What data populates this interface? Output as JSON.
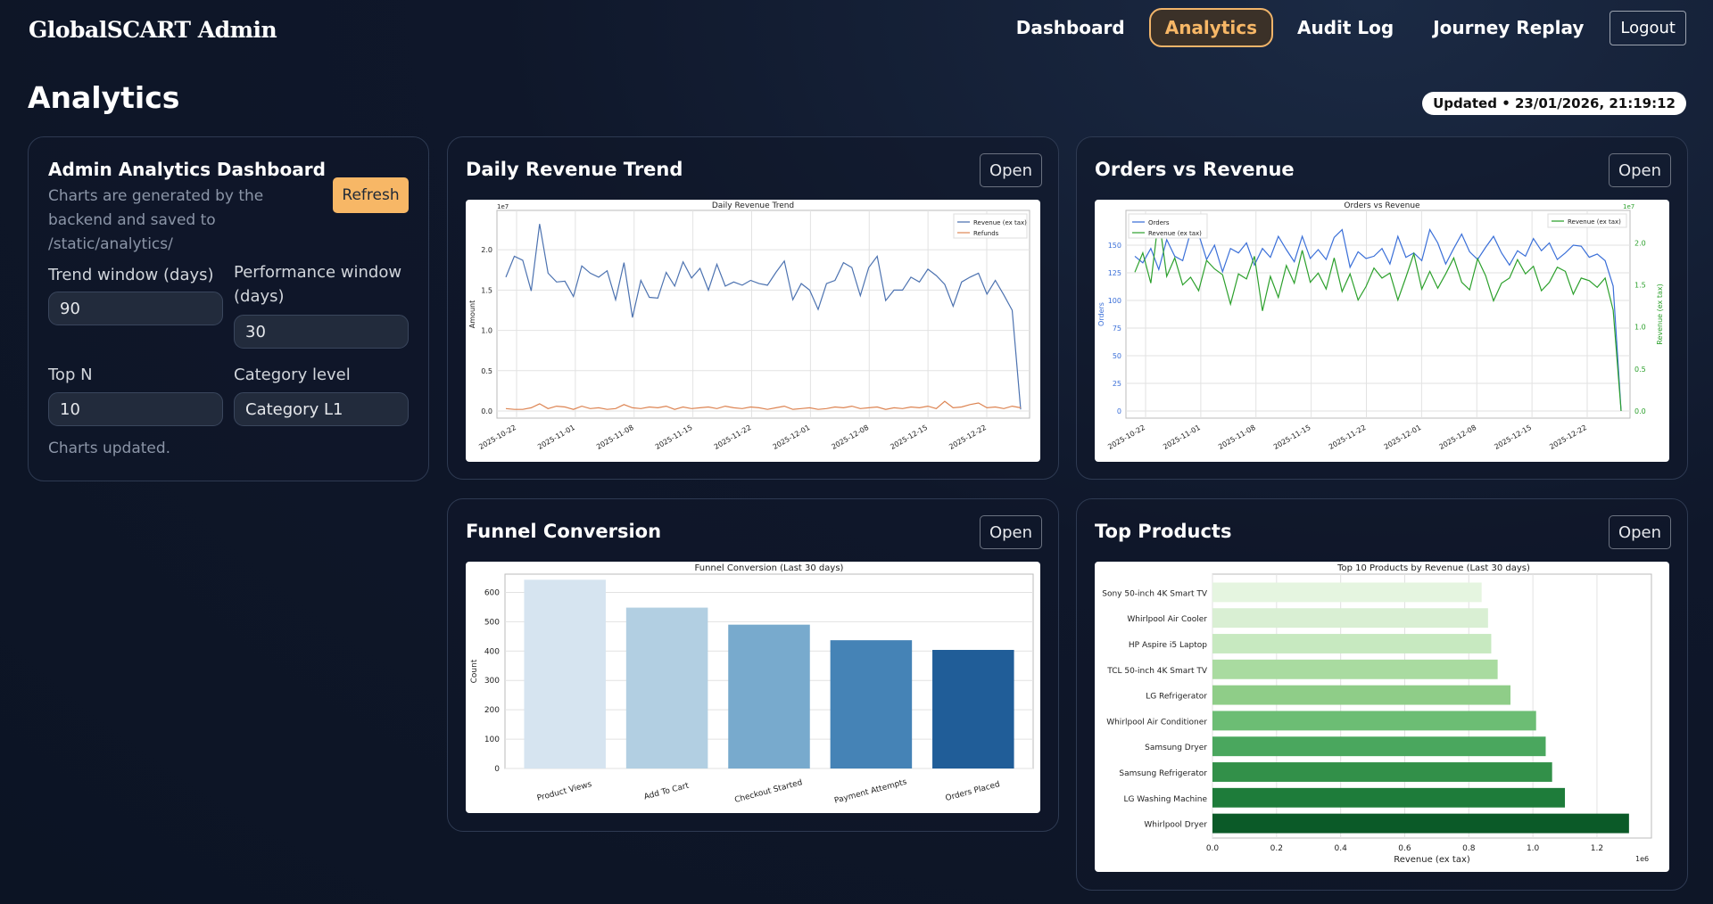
{
  "app": {
    "title": "GlobalSCART Admin"
  },
  "nav": {
    "items": [
      "Dashboard",
      "Analytics",
      "Audit Log",
      "Journey Replay"
    ],
    "logout": "Logout"
  },
  "page": {
    "title": "Analytics",
    "updated": "Updated • 23/01/2026, 21:19:12"
  },
  "controls": {
    "title": "Admin Analytics Dashboard",
    "subtitle": "Charts are generated by the backend and saved to /static/analytics/",
    "refresh": "Refresh",
    "trend_label": "Trend window (days)",
    "trend_value": "90",
    "perf_label": "Performance window (days)",
    "perf_value": "30",
    "topn_label": "Top N",
    "topn_value": "10",
    "catlevel_label": "Category level",
    "catlevel_value": "Category L1",
    "status": "Charts updated."
  },
  "cards": {
    "revenue": "Daily Revenue Trend",
    "orders": "Orders vs Revenue",
    "funnel": "Funnel Conversion",
    "products": "Top Products",
    "open": "Open"
  },
  "colors": {
    "accent": "#f7b766",
    "revenue": "#4c72b0",
    "refunds": "#dd8452",
    "orders": "#3a6fd8",
    "green": "#2ca02c"
  },
  "chart_data": [
    {
      "type": "line",
      "title": "Daily Revenue Trend",
      "ylabel": "Amount",
      "scale_note": "1e7",
      "ylim": [
        0,
        2.4
      ],
      "yticks": [
        "0.0",
        "0.5",
        "1.0",
        "1.5",
        "2.0"
      ],
      "xticks": [
        "2025-10-22",
        "2025-11-01",
        "2025-11-08",
        "2025-11-15",
        "2025-11-22",
        "2025-12-01",
        "2025-12-08",
        "2025-12-15",
        "2025-12-22"
      ],
      "series": [
        {
          "name": "Revenue (ex tax)",
          "values": [
            1.66,
            1.92,
            1.87,
            1.49,
            2.32,
            1.71,
            1.6,
            1.61,
            1.42,
            1.8,
            1.71,
            1.66,
            1.74,
            1.38,
            1.84,
            1.16,
            1.62,
            1.41,
            1.4,
            1.72,
            1.55,
            1.85,
            1.65,
            1.77,
            1.5,
            1.82,
            1.55,
            1.6,
            1.56,
            1.62,
            1.58,
            1.56,
            1.72,
            1.86,
            1.38,
            1.58,
            1.5,
            1.26,
            1.58,
            1.62,
            1.84,
            1.78,
            1.43,
            1.78,
            1.92,
            1.37,
            1.5,
            1.5,
            1.66,
            1.6,
            1.76,
            1.68,
            1.57,
            1.3,
            1.6,
            1.66,
            1.71,
            1.45,
            1.62,
            1.44,
            1.25,
            0.02
          ]
        },
        {
          "name": "Refunds",
          "values": [
            0.03,
            0.02,
            0.02,
            0.04,
            0.09,
            0.03,
            0.06,
            0.05,
            0.02,
            0.06,
            0.03,
            0.04,
            0.02,
            0.03,
            0.08,
            0.04,
            0.03,
            0.05,
            0.04,
            0.06,
            0.02,
            0.05,
            0.03,
            0.04,
            0.05,
            0.03,
            0.06,
            0.04,
            0.03,
            0.05,
            0.04,
            0.02,
            0.04,
            0.06,
            0.02,
            0.03,
            0.04,
            0.02,
            0.03,
            0.05,
            0.04,
            0.06,
            0.03,
            0.04,
            0.05,
            0.02,
            0.04,
            0.03,
            0.05,
            0.04,
            0.06,
            0.03,
            0.12,
            0.04,
            0.05,
            0.08,
            0.1,
            0.04,
            0.05,
            0.03,
            0.06,
            0.04
          ]
        }
      ]
    },
    {
      "type": "line",
      "title": "Orders vs Revenue",
      "ylabel": "Orders",
      "ylabel2": "Revenue (ex tax)",
      "scale_note": "1e7",
      "ylim": [
        0,
        175
      ],
      "yticks": [
        "0",
        "25",
        "50",
        "75",
        "100",
        "125",
        "150"
      ],
      "ylim2": [
        0,
        2.3
      ],
      "yticks2": [
        "0.0",
        "0.5",
        "1.0",
        "1.5",
        "2.0"
      ],
      "xticks": [
        "2025-10-22",
        "2025-11-01",
        "2025-11-08",
        "2025-11-15",
        "2025-11-22",
        "2025-12-01",
        "2025-12-08",
        "2025-12-15",
        "2025-12-22"
      ],
      "series": [
        {
          "name": "Orders",
          "values": [
            140,
            134,
            147,
            128,
            155,
            140,
            136,
            162,
            160,
            137,
            150,
            126,
            147,
            143,
            152,
            132,
            147,
            139,
            158,
            146,
            135,
            158,
            138,
            146,
            137,
            157,
            164,
            130,
            144,
            138,
            140,
            147,
            133,
            158,
            139,
            143,
            136,
            164,
            152,
            133,
            147,
            160,
            144,
            137,
            148,
            158,
            143,
            132,
            145,
            140,
            156,
            145,
            152,
            137,
            143,
            150,
            149,
            139,
            142,
            136,
            113,
            0
          ]
        },
        {
          "name": "Revenue (ex tax)",
          "values": [
            1.65,
            1.88,
            1.52,
            2.31,
            1.6,
            1.82,
            1.5,
            1.59,
            1.43,
            1.79,
            1.69,
            1.62,
            1.27,
            1.63,
            1.57,
            1.84,
            1.19,
            1.6,
            1.35,
            1.73,
            1.52,
            1.91,
            1.53,
            1.64,
            1.45,
            1.82,
            1.42,
            1.63,
            1.32,
            1.48,
            1.7,
            1.58,
            1.64,
            1.32,
            1.59,
            1.87,
            1.45,
            1.66,
            1.46,
            1.63,
            1.82,
            1.53,
            1.44,
            1.81,
            1.61,
            1.31,
            1.52,
            1.58,
            1.8,
            1.63,
            1.72,
            1.43,
            1.53,
            1.71,
            1.66,
            1.39,
            1.58,
            1.55,
            1.47,
            1.58,
            1.2,
            0.0
          ]
        }
      ]
    },
    {
      "type": "bar",
      "title": "Funnel Conversion (Last 30 days)",
      "ylabel": "Count",
      "ylim": [
        0,
        650
      ],
      "yticks": [
        "0",
        "100",
        "200",
        "300",
        "400",
        "500",
        "600"
      ],
      "categories": [
        "Product Views",
        "Add To Cart",
        "Checkout Started",
        "Payment Attempts",
        "Orders Placed"
      ],
      "values": [
        643,
        548,
        490,
        437,
        404
      ],
      "colors": [
        "#d6e4f0",
        "#b2cfe2",
        "#78aacd",
        "#4583b6",
        "#205d98"
      ]
    },
    {
      "type": "bar",
      "title": "Top 10 Products by Revenue (Last 30 days)",
      "xlabel": "Revenue (ex tax)",
      "scale_note": "1e6",
      "xlim": [
        0,
        1.37
      ],
      "xticks": [
        "0.0",
        "0.2",
        "0.4",
        "0.6",
        "0.8",
        "1.0",
        "1.2"
      ],
      "categories": [
        "Sony 50-inch 4K Smart TV",
        "Whirlpool Air Cooler",
        "HP Aspire i5 Laptop",
        "TCL 50-inch 4K Smart TV",
        "LG Refrigerator",
        "Whirlpool Air Conditioner",
        "Samsung Dryer",
        "Samsung Refrigerator",
        "LG Washing Machine",
        "Whirlpool Dryer"
      ],
      "values": [
        0.84,
        0.86,
        0.87,
        0.89,
        0.93,
        1.01,
        1.04,
        1.06,
        1.1,
        1.3
      ],
      "colors": [
        "#e5f5e0",
        "#d9efd3",
        "#c7e9c0",
        "#a9dba0",
        "#8fcd88",
        "#6cbd74",
        "#4aa75e",
        "#329049",
        "#1e7c3a",
        "#0b5a28"
      ]
    }
  ]
}
